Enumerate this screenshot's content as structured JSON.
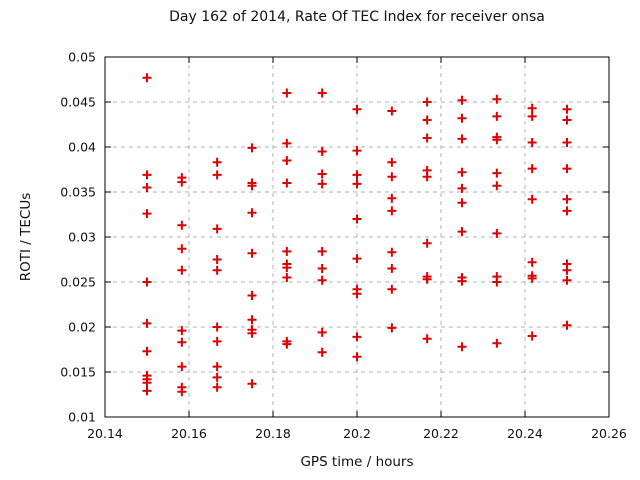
{
  "title": "Day 162 of 2014, Rate Of TEC Index for receiver onsa",
  "chart_data": {
    "type": "scatter",
    "title": "Day 162 of 2014, Rate Of TEC Index for receiver onsa",
    "xlabel": "GPS time / hours",
    "ylabel": "ROTI / TECUs",
    "xlim": [
      20.14,
      20.26
    ],
    "ylim": [
      0.01,
      0.05
    ],
    "xticks": [
      20.14,
      20.16,
      20.18,
      20.2,
      20.22,
      20.24,
      20.26
    ],
    "xtick_labels": [
      "20.14",
      "20.16",
      "20.18",
      "20.2",
      "20.22",
      "20.24",
      "20.26"
    ],
    "yticks": [
      0.01,
      0.015,
      0.02,
      0.025,
      0.03,
      0.035,
      0.04,
      0.045,
      0.05
    ],
    "ytick_labels": [
      "0.01",
      "0.015",
      "0.02",
      "0.025",
      "0.03",
      "0.035",
      "0.04",
      "0.045",
      "0.05"
    ],
    "grid": true,
    "legend": "none",
    "marker": "plus",
    "marker_color": "#e00000",
    "grid_color": "#b3b3b3",
    "border_color": "#000000",
    "text_color": "#111111",
    "series": [
      {
        "name": "ROTI",
        "points": [
          [
            20.15,
            0.0477
          ],
          [
            20.15,
            0.0369
          ],
          [
            20.15,
            0.0355
          ],
          [
            20.15,
            0.0326
          ],
          [
            20.15,
            0.025
          ],
          [
            20.15,
            0.0204
          ],
          [
            20.15,
            0.0173
          ],
          [
            20.15,
            0.0146
          ],
          [
            20.15,
            0.0142
          ],
          [
            20.15,
            0.0138
          ],
          [
            20.15,
            0.0129
          ],
          [
            20.1583,
            0.0366
          ],
          [
            20.1583,
            0.0361
          ],
          [
            20.1583,
            0.0313
          ],
          [
            20.1583,
            0.0287
          ],
          [
            20.1583,
            0.0263
          ],
          [
            20.1583,
            0.0196
          ],
          [
            20.1583,
            0.0183
          ],
          [
            20.1583,
            0.0156
          ],
          [
            20.1583,
            0.0133
          ],
          [
            20.1583,
            0.0128
          ],
          [
            20.1667,
            0.0383
          ],
          [
            20.1667,
            0.0369
          ],
          [
            20.1667,
            0.0309
          ],
          [
            20.1667,
            0.0275
          ],
          [
            20.1667,
            0.0263
          ],
          [
            20.1667,
            0.02
          ],
          [
            20.1667,
            0.0184
          ],
          [
            20.1667,
            0.0156
          ],
          [
            20.1667,
            0.0144
          ],
          [
            20.1667,
            0.0133
          ],
          [
            20.175,
            0.0399
          ],
          [
            20.175,
            0.036
          ],
          [
            20.175,
            0.0357
          ],
          [
            20.175,
            0.0327
          ],
          [
            20.175,
            0.0282
          ],
          [
            20.175,
            0.0235
          ],
          [
            20.175,
            0.0208
          ],
          [
            20.175,
            0.0197
          ],
          [
            20.175,
            0.0193
          ],
          [
            20.175,
            0.0137
          ],
          [
            20.1833,
            0.046
          ],
          [
            20.1833,
            0.0404
          ],
          [
            20.1833,
            0.0385
          ],
          [
            20.1833,
            0.036
          ],
          [
            20.1833,
            0.0284
          ],
          [
            20.1833,
            0.027
          ],
          [
            20.1833,
            0.0266
          ],
          [
            20.1833,
            0.0255
          ],
          [
            20.1833,
            0.0184
          ],
          [
            20.1833,
            0.0181
          ],
          [
            20.1917,
            0.046
          ],
          [
            20.1917,
            0.0395
          ],
          [
            20.1917,
            0.037
          ],
          [
            20.1917,
            0.0359
          ],
          [
            20.1917,
            0.0284
          ],
          [
            20.1917,
            0.0265
          ],
          [
            20.1917,
            0.0252
          ],
          [
            20.1917,
            0.0194
          ],
          [
            20.1917,
            0.0172
          ],
          [
            20.2,
            0.0442
          ],
          [
            20.2,
            0.0396
          ],
          [
            20.2,
            0.0369
          ],
          [
            20.2,
            0.0359
          ],
          [
            20.2,
            0.032
          ],
          [
            20.2,
            0.0276
          ],
          [
            20.2,
            0.0242
          ],
          [
            20.2,
            0.0237
          ],
          [
            20.2,
            0.0189
          ],
          [
            20.2,
            0.0167
          ],
          [
            20.2083,
            0.044
          ],
          [
            20.2083,
            0.0383
          ],
          [
            20.2083,
            0.0367
          ],
          [
            20.2083,
            0.0343
          ],
          [
            20.2083,
            0.0329
          ],
          [
            20.2083,
            0.0283
          ],
          [
            20.2083,
            0.0265
          ],
          [
            20.2083,
            0.0242
          ],
          [
            20.2083,
            0.0199
          ],
          [
            20.2167,
            0.045
          ],
          [
            20.2167,
            0.043
          ],
          [
            20.2167,
            0.041
          ],
          [
            20.2167,
            0.0374
          ],
          [
            20.2167,
            0.0367
          ],
          [
            20.2167,
            0.0293
          ],
          [
            20.2167,
            0.0256
          ],
          [
            20.2167,
            0.0253
          ],
          [
            20.2167,
            0.0187
          ],
          [
            20.225,
            0.0452
          ],
          [
            20.225,
            0.0432
          ],
          [
            20.225,
            0.0409
          ],
          [
            20.225,
            0.0372
          ],
          [
            20.225,
            0.0354
          ],
          [
            20.225,
            0.0338
          ],
          [
            20.225,
            0.0306
          ],
          [
            20.225,
            0.0255
          ],
          [
            20.225,
            0.0251
          ],
          [
            20.225,
            0.0178
          ],
          [
            20.2333,
            0.0453
          ],
          [
            20.2333,
            0.0434
          ],
          [
            20.2333,
            0.0411
          ],
          [
            20.2333,
            0.0408
          ],
          [
            20.2333,
            0.0371
          ],
          [
            20.2333,
            0.0357
          ],
          [
            20.2333,
            0.0304
          ],
          [
            20.2333,
            0.0256
          ],
          [
            20.2333,
            0.025
          ],
          [
            20.2333,
            0.0182
          ],
          [
            20.2417,
            0.0443
          ],
          [
            20.2417,
            0.0434
          ],
          [
            20.2417,
            0.0405
          ],
          [
            20.2417,
            0.0376
          ],
          [
            20.2417,
            0.0342
          ],
          [
            20.2417,
            0.0272
          ],
          [
            20.2417,
            0.0257
          ],
          [
            20.2417,
            0.0254
          ],
          [
            20.2417,
            0.019
          ],
          [
            20.25,
            0.0442
          ],
          [
            20.25,
            0.043
          ],
          [
            20.25,
            0.0405
          ],
          [
            20.25,
            0.0376
          ],
          [
            20.25,
            0.0342
          ],
          [
            20.25,
            0.0329
          ],
          [
            20.25,
            0.027
          ],
          [
            20.25,
            0.0263
          ],
          [
            20.25,
            0.0252
          ],
          [
            20.25,
            0.0202
          ]
        ]
      }
    ]
  }
}
